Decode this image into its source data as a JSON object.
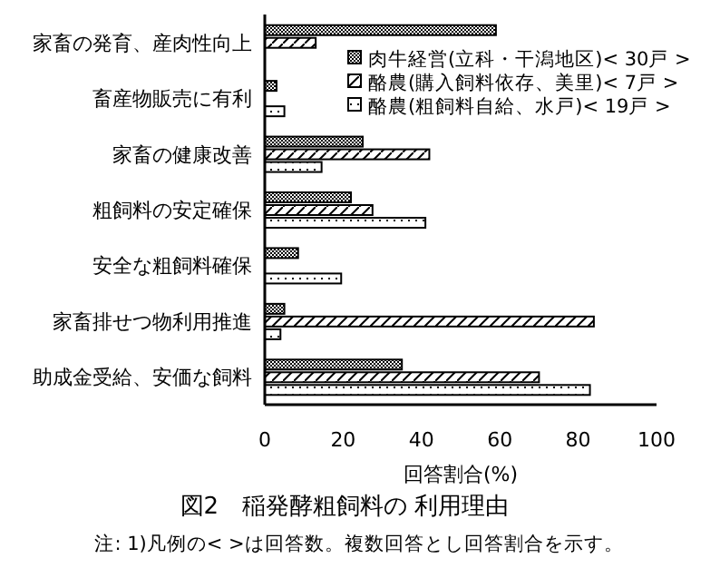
{
  "chart_data": {
    "type": "bar",
    "orientation": "horizontal",
    "title": "図2　稲発酵粗飼料の 利用理由",
    "xlabel": "回答割合(%)",
    "categories": [
      "家畜の発育、産肉性向上",
      "畜産物販売に有利",
      "家畜の健康改善",
      "粗飼料の安定確保",
      "安全な粗飼料確保",
      "家畜排せつ物利用推進",
      "助成金受給、安価な飼料"
    ],
    "series": [
      {
        "name": "肉牛経営(立科・干潟地区)< 30戸 >",
        "color": "#000000",
        "values": [
          59,
          3,
          25,
          22,
          8.5,
          5,
          35
        ]
      },
      {
        "name": "酪農(購入飼料依存、美里)< 7戸 >",
        "color": "#000000",
        "values": [
          13,
          0,
          42,
          27.5,
          0,
          84,
          70
        ]
      },
      {
        "name": "酪農(粗飼料自給、水戸)< 19戸 >",
        "color": "#000000",
        "values": [
          0,
          5,
          14.5,
          41,
          19.5,
          4,
          83
        ]
      }
    ],
    "xlim": [
      0,
      100
    ],
    "xticks": [
      0,
      20,
      40,
      60,
      80,
      100
    ],
    "grid": false,
    "legend": "top right",
    "annotations": [
      "注: 1)凡例の< >は回答数。複数回答とし回答割合を示す。"
    ]
  }
}
